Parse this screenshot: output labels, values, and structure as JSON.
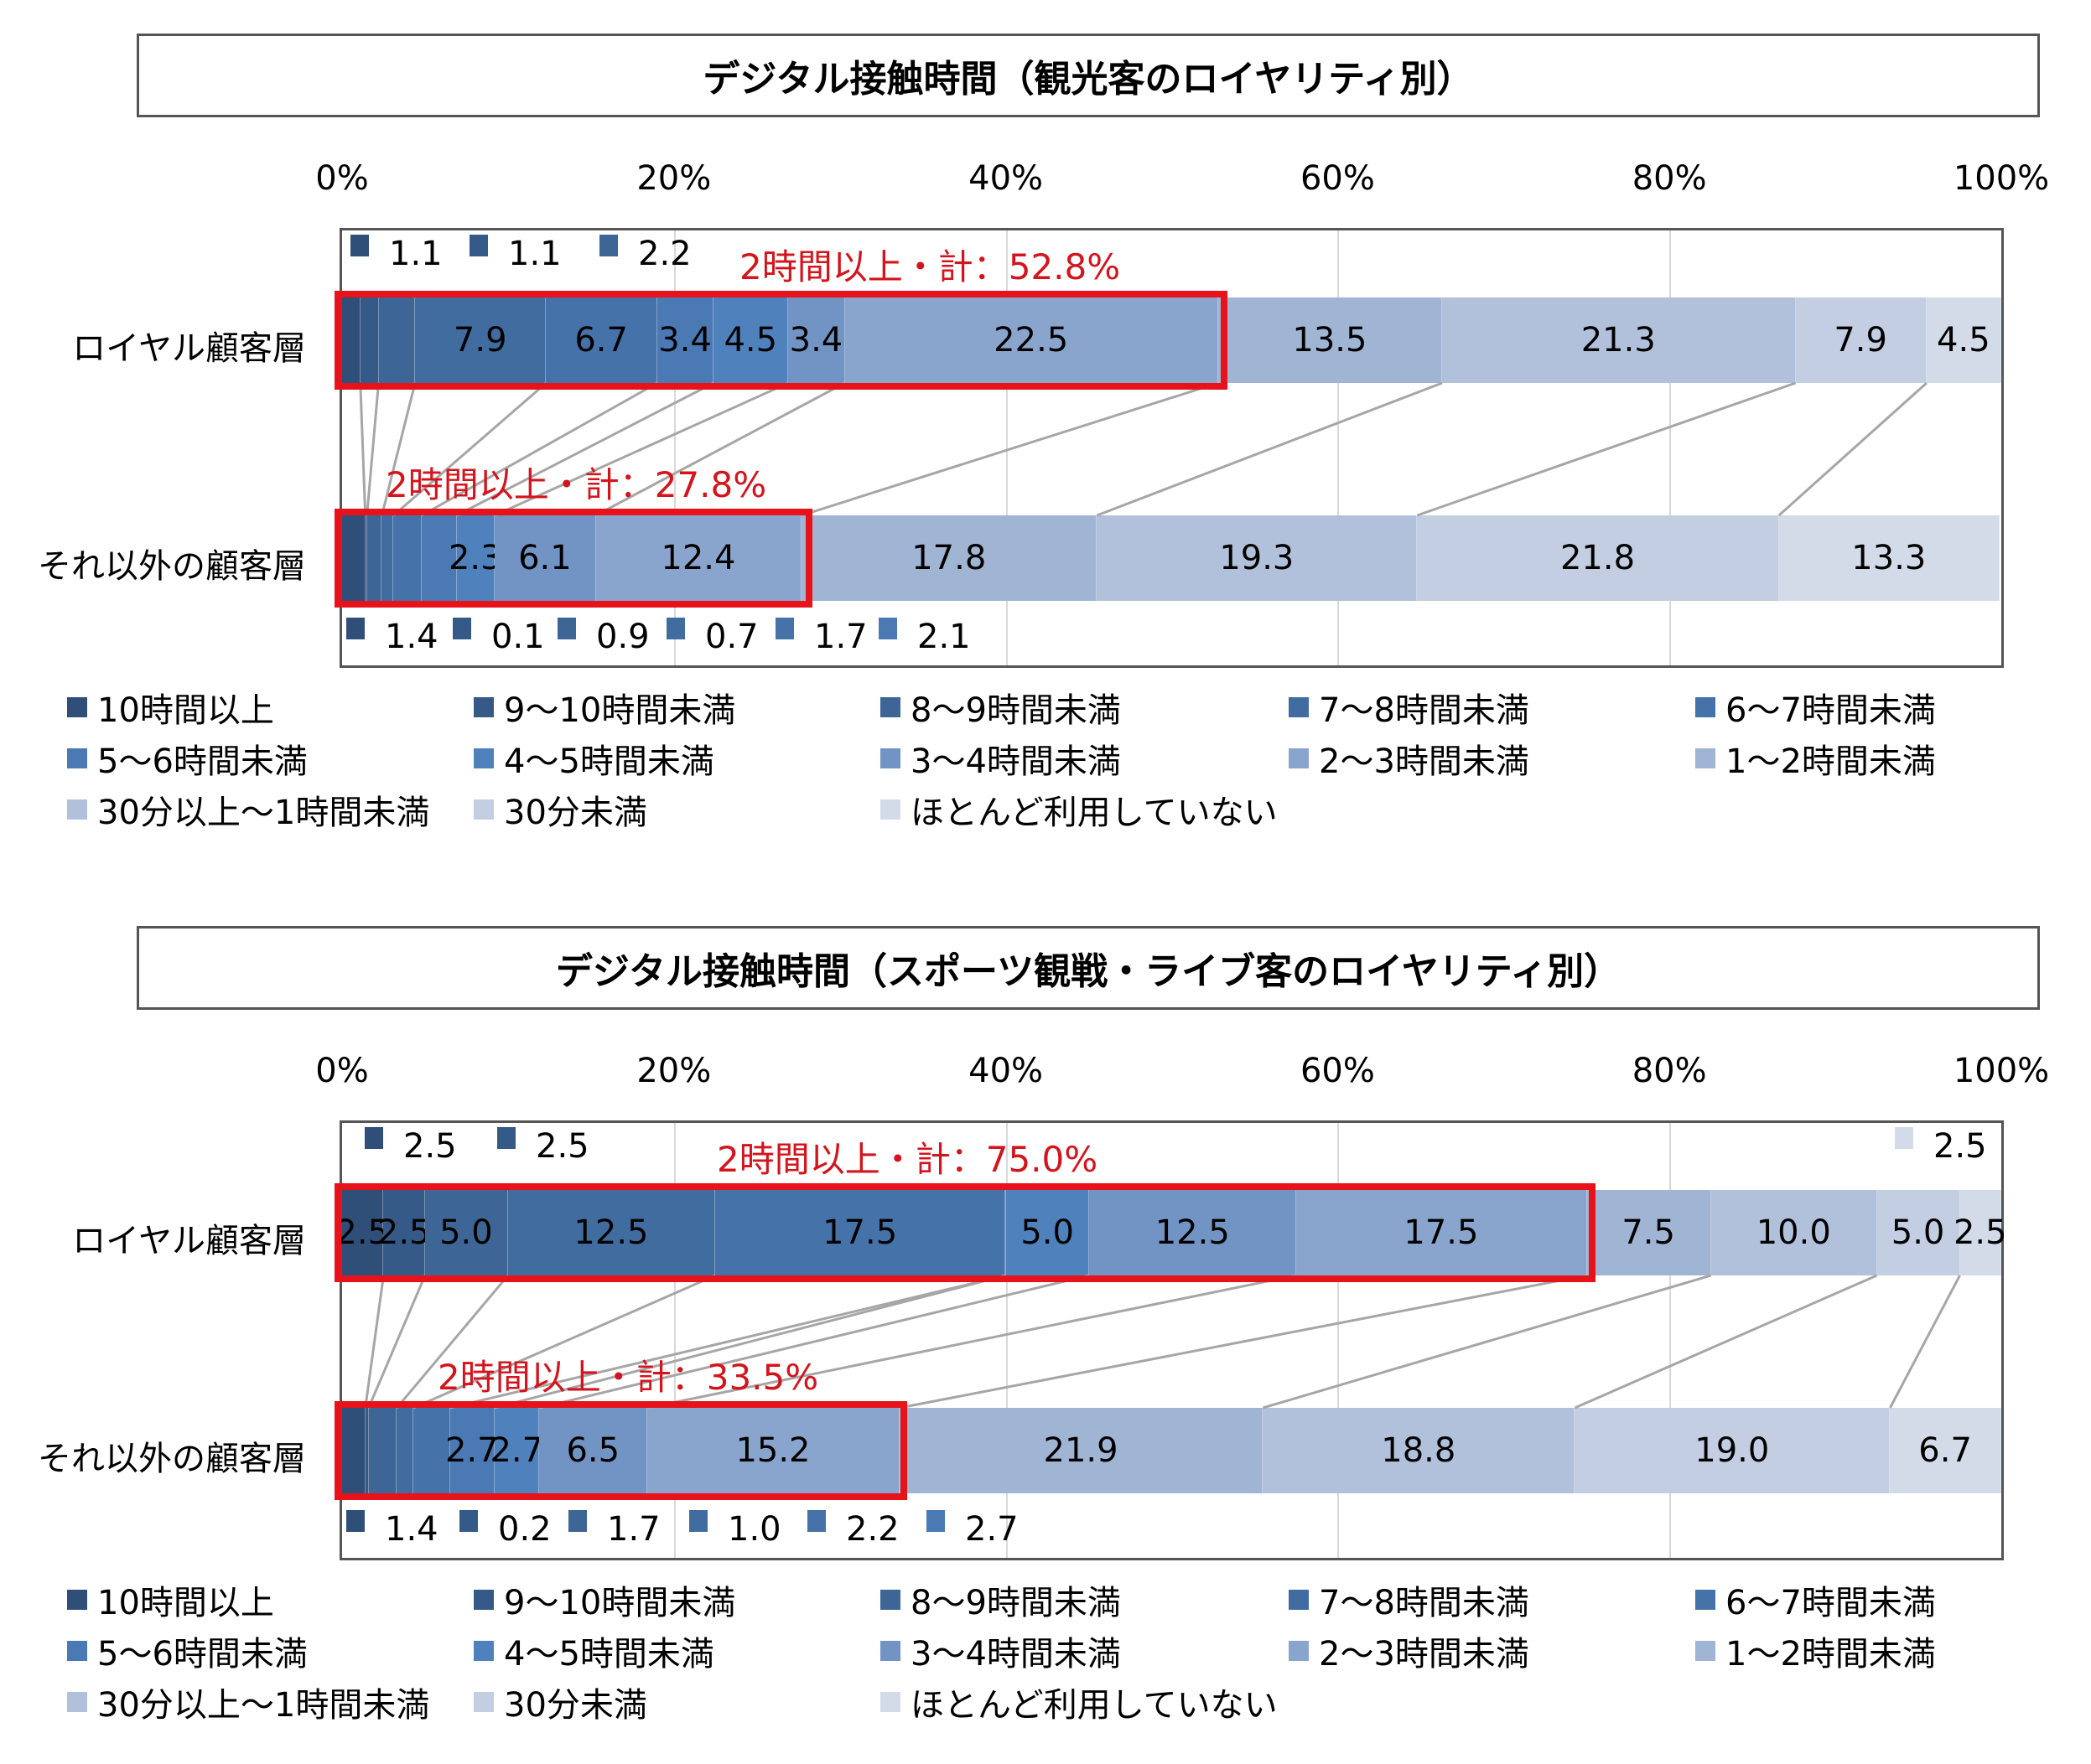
{
  "legend": {
    "items": [
      {
        "label": "10時間以上",
        "color": "#2f4f78"
      },
      {
        "label": "9〜10時間未満",
        "color": "#365a88"
      },
      {
        "label": "8〜9時間未満",
        "color": "#3d6595"
      },
      {
        "label": "7〜8時間未満",
        "color": "#416ca0"
      },
      {
        "label": "6〜7時間未満",
        "color": "#4672aa"
      },
      {
        "label": "5〜6時間未満",
        "color": "#4a79b4"
      },
      {
        "label": "4〜5時間未満",
        "color": "#4f81bd"
      },
      {
        "label": "3〜4時間未満",
        "color": "#7194c4"
      },
      {
        "label": "2〜3時間未満",
        "color": "#8aa5cd"
      },
      {
        "label": "1〜2時間未満",
        "color": "#a0b4d4"
      },
      {
        "label": "30分以上〜1時間未満",
        "color": "#b1c1dc"
      },
      {
        "label": "30分未満",
        "color": "#c3cee3"
      },
      {
        "label": "ほとんど利用していない",
        "color": "#d3dbe9"
      }
    ]
  },
  "chart_data": [
    {
      "type": "bar",
      "orientation": "horizontal",
      "stacked": "percent",
      "title": "デジタル接触時間（観光客のロイヤリティ別）",
      "xlabel": "",
      "ylabel": "",
      "xlim": [
        0,
        100
      ],
      "xticks": [
        "0%",
        "20%",
        "40%",
        "60%",
        "80%",
        "100%"
      ],
      "grid": true,
      "legend_position": "bottom",
      "categories": [
        "ロイヤル顧客層",
        "それ以外の顧客層"
      ],
      "series_names": [
        "10時間以上",
        "9〜10時間未満",
        "8〜9時間未満",
        "7〜8時間未満",
        "6〜7時間未満",
        "5〜6時間未満",
        "4〜5時間未満",
        "3〜4時間未満",
        "2〜3時間未満",
        "1〜2時間未満",
        "30分以上〜1時間未満",
        "30分未満",
        "ほとんど利用していない"
      ],
      "series": [
        {
          "name": "ロイヤル顧客層",
          "values": [
            1.1,
            1.1,
            2.2,
            7.9,
            6.7,
            3.4,
            4.5,
            3.4,
            22.5,
            13.5,
            21.3,
            7.9,
            4.5
          ]
        },
        {
          "name": "それ以外の顧客層",
          "values": [
            1.4,
            0.1,
            0.9,
            0.7,
            1.7,
            2.1,
            2.3,
            6.1,
            12.4,
            17.8,
            19.3,
            21.8,
            13.3
          ]
        }
      ],
      "annotations": [
        {
          "row": "ロイヤル顧客層",
          "text": "2時間以上・計：52.8%"
        },
        {
          "row": "それ以外の顧客層",
          "text": "2時間以上・計：27.8%"
        }
      ]
    },
    {
      "type": "bar",
      "orientation": "horizontal",
      "stacked": "percent",
      "title": "デジタル接触時間（スポーツ観戦・ライブ客のロイヤリティ別）",
      "xlabel": "",
      "ylabel": "",
      "xlim": [
        0,
        100
      ],
      "xticks": [
        "0%",
        "20%",
        "40%",
        "60%",
        "80%",
        "100%"
      ],
      "grid": true,
      "legend_position": "bottom",
      "categories": [
        "ロイヤル顧客層",
        "それ以外の顧客層"
      ],
      "series_names": [
        "10時間以上",
        "9〜10時間未満",
        "8〜9時間未満",
        "7〜8時間未満",
        "6〜7時間未満",
        "5〜6時間未満",
        "4〜5時間未満",
        "3〜4時間未満",
        "2〜3時間未満",
        "1〜2時間未満",
        "30分以上〜1時間未満",
        "30分未満",
        "ほとんど利用していない"
      ],
      "series": [
        {
          "name": "ロイヤル顧客層",
          "values": [
            2.5,
            2.5,
            5.0,
            12.5,
            17.5,
            0.0,
            5.0,
            12.5,
            17.5,
            7.5,
            10.0,
            5.0,
            2.5
          ]
        },
        {
          "name": "それ以外の顧客層",
          "values": [
            1.4,
            0.2,
            1.7,
            1.0,
            2.2,
            2.7,
            2.7,
            6.5,
            15.2,
            21.9,
            18.8,
            19.0,
            6.7
          ]
        }
      ],
      "annotations": [
        {
          "row": "ロイヤル顧客層",
          "text": "2時間以上・計：75.0%"
        },
        {
          "row": "それ以外の顧客層",
          "text": "2時間以上・計：33.5%"
        }
      ]
    }
  ],
  "panels": [
    {
      "title": "デジタル接触時間（観光客のロイヤリティ別）",
      "ticks": [
        "0%",
        "20%",
        "40%",
        "60%",
        "80%",
        "100%"
      ],
      "rows": [
        {
          "label": "ロイヤル顧客層",
          "highlight": "2時間以上・計：52.8%",
          "highlight_pct": 52.8
        },
        {
          "label": "それ以外の顧客層",
          "highlight": "2時間以上・計：27.8%",
          "highlight_pct": 27.8
        }
      ]
    },
    {
      "title": "デジタル接触時間（スポーツ観戦・ライブ客のロイヤリティ別）",
      "ticks": [
        "0%",
        "20%",
        "40%",
        "60%",
        "80%",
        "100%"
      ],
      "rows": [
        {
          "label": "ロイヤル顧客層",
          "highlight": "2時間以上・計：75.0%",
          "highlight_pct": 75.0
        },
        {
          "label": "それ以外の顧客層",
          "highlight": "2時間以上・計：33.5%",
          "highlight_pct": 33.5
        }
      ]
    }
  ]
}
